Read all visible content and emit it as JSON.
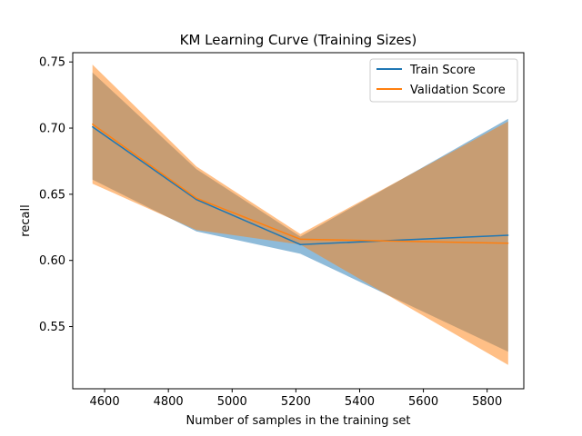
{
  "chart_data": {
    "type": "line",
    "title": "KM Learning Curve (Training Sizes)",
    "xlabel": "Number of samples in the training set",
    "ylabel": "recall",
    "x": [
      4562,
      4888,
      5214,
      5866
    ],
    "xlim": [
      4500,
      5915
    ],
    "ylim": [
      0.503,
      0.757
    ],
    "xticks": [
      4600,
      4800,
      5000,
      5200,
      5400,
      5600,
      5800
    ],
    "yticks": [
      0.55,
      0.6,
      0.65,
      0.7,
      0.75
    ],
    "grid": false,
    "legend_position": "top-right",
    "series": [
      {
        "name": "Train Score",
        "color": "#1f77b4",
        "band_color": "#1f77b4",
        "values": [
          0.701,
          0.646,
          0.612,
          0.619
        ],
        "lower": [
          0.661,
          0.622,
          0.605,
          0.531
        ],
        "upper": [
          0.742,
          0.669,
          0.618,
          0.707
        ]
      },
      {
        "name": "Validation Score",
        "color": "#ff7f0e",
        "band_color": "#ff7f0e",
        "values": [
          0.703,
          0.647,
          0.616,
          0.613
        ],
        "lower": [
          0.658,
          0.623,
          0.612,
          0.521
        ],
        "upper": [
          0.748,
          0.671,
          0.62,
          0.705
        ]
      }
    ]
  }
}
